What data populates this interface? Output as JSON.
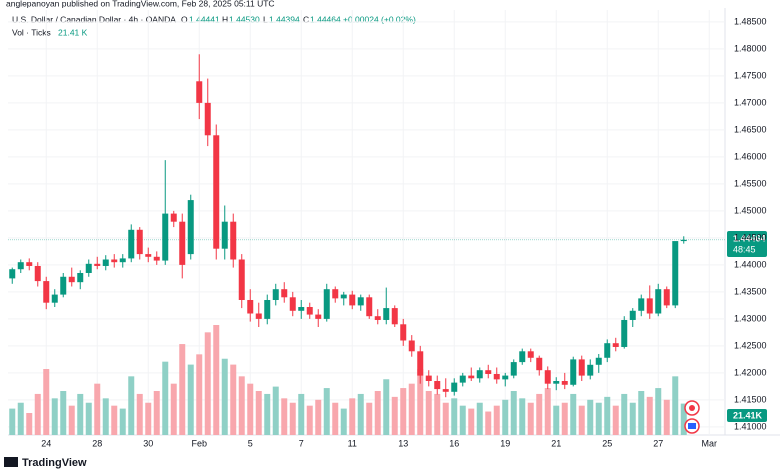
{
  "header": {
    "published": "anglepanoyan published on TradingView.com, Feb 28, 2025 05:11 UTC",
    "symbol": "U.S. Dollar / Canadian Dollar · 4h · OANDA",
    "open_label": "O",
    "open": 1.44441,
    "high_label": "H",
    "high": 1.4453,
    "high_text": "1.44530",
    "low_label": "L",
    "low": 1.44394,
    "close_label": "C",
    "close": 1.44464,
    "change": "+0.00024 (+0.02%)",
    "vol_label": "Vol · Ticks",
    "vol_value": "21.41 K",
    "price_tag": "1.44464",
    "countdown": "48:45",
    "volume_tag": "21.41K",
    "brand": "TradingView"
  },
  "chart_data": {
    "type": "candlestick",
    "categories": [
      null,
      null,
      null,
      null,
      "24",
      null,
      null,
      null,
      null,
      null,
      "28",
      null,
      null,
      null,
      null,
      null,
      "30",
      null,
      null,
      null,
      null,
      null,
      "Feb",
      null,
      null,
      null,
      null,
      null,
      "5",
      null,
      null,
      null,
      null,
      null,
      "7",
      null,
      null,
      null,
      null,
      null,
      "11",
      null,
      null,
      null,
      null,
      null,
      "13",
      null,
      null,
      null,
      null,
      null,
      "16",
      null,
      null,
      null,
      null,
      null,
      "19",
      null,
      null,
      null,
      null,
      null,
      "21",
      null,
      null,
      null,
      null,
      null,
      "25",
      null,
      null,
      null,
      null,
      null,
      "27",
      null,
      null,
      null,
      null,
      null,
      "Mar"
    ],
    "open": [
      1.4375,
      1.4392,
      1.4405,
      1.4398,
      1.437,
      1.433,
      1.4345,
      1.4378,
      1.4368,
      1.4385,
      1.4402,
      1.4398,
      1.441,
      1.4405,
      1.4412,
      1.4465,
      1.442,
      1.4415,
      1.4408,
      1.4495,
      1.448,
      1.442,
      1.474,
      1.47,
      1.464,
      1.443,
      1.448,
      1.441,
      1.4335,
      1.431,
      1.43,
      1.4335,
      1.4355,
      1.434,
      1.4315,
      1.4322,
      1.4308,
      1.43,
      1.4355,
      1.4338,
      1.4345,
      1.4325,
      1.434,
      1.4305,
      1.4298,
      1.432,
      1.429,
      1.426,
      1.424,
      1.4195,
      1.4185,
      1.417,
      1.4165,
      1.4182,
      1.4195,
      1.419,
      1.4205,
      1.4198,
      1.4188,
      1.4195,
      1.422,
      1.424,
      1.4228,
      1.4205,
      1.418,
      1.4185,
      1.4178,
      1.4225,
      1.4195,
      1.4215,
      1.4228,
      1.4255,
      1.4248,
      1.4298,
      1.4315,
      1.4338,
      1.431,
      1.4355,
      1.4325,
      1.44441,
      null,
      null,
      null
    ],
    "high": [
      1.4395,
      1.441,
      1.4412,
      1.4405,
      1.4378,
      1.4355,
      1.4385,
      1.4395,
      1.439,
      1.441,
      1.4415,
      1.4418,
      1.442,
      1.442,
      1.4475,
      1.447,
      1.4432,
      1.4425,
      1.4594,
      1.45,
      1.4495,
      1.453,
      1.479,
      1.4745,
      1.466,
      1.451,
      1.4495,
      1.442,
      1.4355,
      1.433,
      1.4345,
      1.4365,
      1.4368,
      1.435,
      1.4335,
      1.433,
      1.4318,
      1.4365,
      1.436,
      1.435,
      1.4352,
      1.4345,
      1.4345,
      1.4318,
      1.4358,
      1.4325,
      1.43,
      1.427,
      1.425,
      1.4205,
      1.4195,
      1.419,
      1.419,
      1.42,
      1.421,
      1.421,
      1.4215,
      1.421,
      1.42,
      1.4225,
      1.4245,
      1.4245,
      1.4232,
      1.4212,
      1.4192,
      1.42,
      1.423,
      1.4232,
      1.4225,
      1.4235,
      1.4262,
      1.4265,
      1.4305,
      1.432,
      1.4345,
      1.4362,
      1.4365,
      1.436,
      1.444,
      1.4453,
      null,
      null,
      null
    ],
    "low": [
      1.4365,
      1.4385,
      1.439,
      1.436,
      1.4318,
      1.4322,
      1.434,
      1.436,
      1.4355,
      1.4378,
      1.4392,
      1.439,
      1.4395,
      1.4395,
      1.4405,
      1.441,
      1.4405,
      1.44,
      1.44,
      1.447,
      1.4375,
      1.441,
      1.467,
      1.462,
      1.441,
      1.441,
      1.4395,
      1.432,
      1.4295,
      1.4285,
      1.429,
      1.4325,
      1.433,
      1.4305,
      1.43,
      1.43,
      1.4285,
      1.4295,
      1.433,
      1.4325,
      1.4318,
      1.4315,
      1.43,
      1.429,
      1.429,
      1.4285,
      1.425,
      1.423,
      1.418,
      1.4175,
      1.416,
      1.4155,
      1.4158,
      1.4175,
      1.4185,
      1.4182,
      1.419,
      1.418,
      1.4175,
      1.419,
      1.4215,
      1.422,
      1.4195,
      1.417,
      1.4168,
      1.417,
      1.4175,
      1.4185,
      1.4188,
      1.42,
      1.422,
      1.424,
      1.4245,
      1.4285,
      1.4305,
      1.43,
      1.4305,
      1.432,
      1.432,
      1.44394,
      null,
      null,
      null
    ],
    "close": [
      1.4392,
      1.4405,
      1.4398,
      1.437,
      1.433,
      1.4345,
      1.4378,
      1.4368,
      1.4385,
      1.4402,
      1.4398,
      1.441,
      1.4405,
      1.4412,
      1.4465,
      1.442,
      1.4415,
      1.4408,
      1.4495,
      1.448,
      1.44,
      1.452,
      1.47,
      1.464,
      1.443,
      1.448,
      1.441,
      1.4335,
      1.431,
      1.43,
      1.4335,
      1.4355,
      1.434,
      1.4315,
      1.4322,
      1.4308,
      1.43,
      1.4355,
      1.4338,
      1.4345,
      1.4325,
      1.434,
      1.4305,
      1.4298,
      1.432,
      1.429,
      1.426,
      1.424,
      1.4195,
      1.4185,
      1.417,
      1.4165,
      1.4182,
      1.4195,
      1.419,
      1.4205,
      1.4198,
      1.4188,
      1.4195,
      1.422,
      1.424,
      1.4228,
      1.4205,
      1.418,
      1.4185,
      1.4178,
      1.4225,
      1.4195,
      1.4215,
      1.4228,
      1.4255,
      1.4248,
      1.4298,
      1.4315,
      1.4338,
      1.431,
      1.4355,
      1.4325,
      1.44441,
      1.44464,
      null,
      null,
      null
    ],
    "volume": [
      18,
      22,
      15,
      28,
      45,
      25,
      30,
      20,
      28,
      22,
      35,
      25,
      20,
      18,
      40,
      28,
      22,
      30,
      50,
      35,
      62,
      48,
      55,
      70,
      75,
      52,
      48,
      40,
      35,
      30,
      28,
      33,
      25,
      22,
      28,
      20,
      24,
      32,
      22,
      18,
      25,
      28,
      22,
      30,
      38,
      26,
      32,
      35,
      45,
      30,
      28,
      22,
      25,
      20,
      18,
      22,
      16,
      20,
      24,
      30,
      25,
      22,
      28,
      32,
      20,
      22,
      28,
      20,
      24,
      22,
      26,
      20,
      28,
      22,
      30,
      26,
      32,
      24,
      40,
      21.41,
      null,
      null,
      null
    ],
    "up_color": "#089981",
    "down_color": "#f23645",
    "up_volume_color": "#8fd0c6",
    "down_volume_color": "#f8a7ad",
    "ylim": [
      1.4085,
      1.4872
    ],
    "yticks": [
      {
        "value": 1.485,
        "label": "1.48500"
      },
      {
        "value": 1.48,
        "label": "1.48000"
      },
      {
        "value": 1.475,
        "label": "1.47500"
      },
      {
        "value": 1.47,
        "label": "1.47000"
      },
      {
        "value": 1.465,
        "label": "1.46500"
      },
      {
        "value": 1.46,
        "label": "1.46000"
      },
      {
        "value": 1.455,
        "label": "1.45500"
      },
      {
        "value": 1.45,
        "label": "1.45000"
      },
      {
        "value": 1.445,
        "label": "1.44500"
      },
      {
        "value": 1.44,
        "label": "1.44000"
      },
      {
        "value": 1.435,
        "label": "1.43500"
      },
      {
        "value": 1.43,
        "label": "1.43000"
      },
      {
        "value": 1.425,
        "label": "1.42500"
      },
      {
        "value": 1.42,
        "label": "1.42000"
      },
      {
        "value": 1.415,
        "label": "1.41500"
      },
      {
        "value": 1.41,
        "label": "1.41000"
      }
    ],
    "grid": true
  }
}
